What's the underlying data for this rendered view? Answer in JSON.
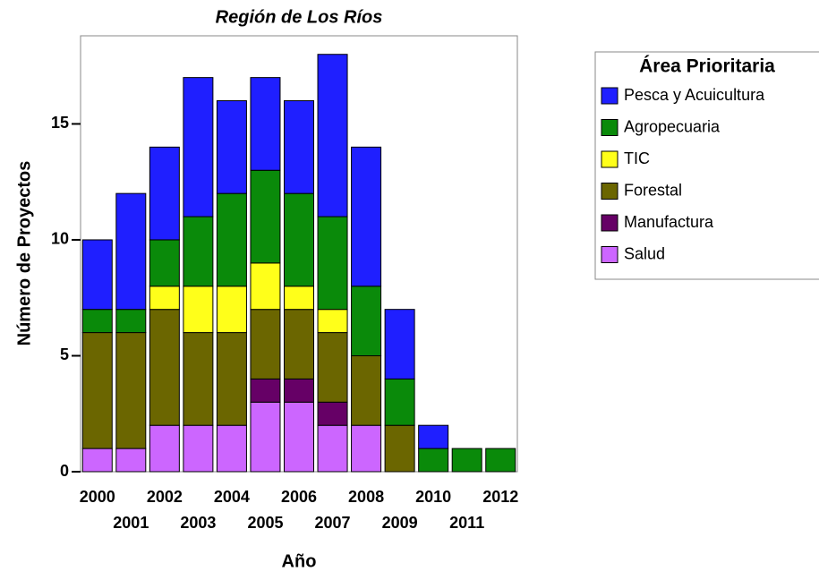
{
  "chart_data": {
    "type": "stacked_bar",
    "title": "Región de Los Ríos",
    "x_label": "Año",
    "y_label": "Número de Proyectos",
    "categories": [
      "2000",
      "2001",
      "2002",
      "2003",
      "2004",
      "2005",
      "2006",
      "2007",
      "2008",
      "2009",
      "2010",
      "2011",
      "2012"
    ],
    "series": [
      {
        "name": "Salud",
        "color": "#cc66ff",
        "values": [
          1,
          1,
          2,
          2,
          2,
          3,
          3,
          2,
          2,
          0,
          0,
          0,
          0
        ]
      },
      {
        "name": "Manufactura",
        "color": "#660066",
        "values": [
          0,
          0,
          0,
          0,
          0,
          1,
          1,
          1,
          0,
          0,
          0,
          0,
          0
        ]
      },
      {
        "name": "Forestal",
        "color": "#6b6600",
        "values": [
          5,
          5,
          5,
          4,
          4,
          3,
          3,
          3,
          3,
          2,
          0,
          0,
          0
        ]
      },
      {
        "name": "TIC",
        "color": "#ffff1a",
        "values": [
          0,
          0,
          1,
          2,
          2,
          2,
          1,
          1,
          0,
          0,
          0,
          0,
          0
        ]
      },
      {
        "name": "Agropecuaria",
        "color": "#0a8a0a",
        "values": [
          1,
          1,
          2,
          3,
          4,
          4,
          4,
          4,
          3,
          2,
          1,
          1,
          1
        ]
      },
      {
        "name": "Pesca y Acuicultura",
        "color": "#1f1fff",
        "values": [
          3,
          5,
          4,
          6,
          4,
          4,
          4,
          7,
          6,
          3,
          1,
          0,
          0
        ]
      }
    ],
    "ylim": [
      0,
      18.8
    ],
    "yticks": [
      0,
      5,
      10,
      15
    ],
    "legend": {
      "title": "Área Prioritaria",
      "position": "right"
    }
  }
}
